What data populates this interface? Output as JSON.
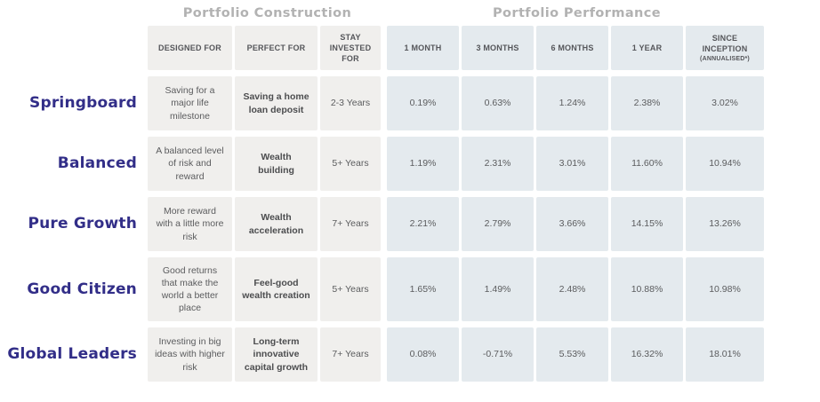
{
  "sections": {
    "construction_title": "Portfolio Construction",
    "performance_title": "Portfolio Performance"
  },
  "colors": {
    "row_label_text": "#322e88",
    "section_title_text": "#b2b2b2",
    "construction_cell_bg": "#f0efed",
    "performance_cell_bg": "#e4eaee",
    "cell_text": "#5b5c5e",
    "header_text": "#55565a"
  },
  "chart_data": {
    "type": "table",
    "title": "",
    "column_groups": [
      {
        "label": "Portfolio Construction",
        "columns": [
          "DESIGNED FOR",
          "PERFECT FOR",
          "STAY INVESTED FOR"
        ]
      },
      {
        "label": "Portfolio Performance",
        "columns": [
          "1 MONTH",
          "3 MONTHS",
          "6 MONTHS",
          "1 YEAR",
          "SINCE INCEPTION (ANNUALISED*)"
        ]
      }
    ],
    "columns": [
      {
        "label": "DESIGNED FOR"
      },
      {
        "label": "PERFECT FOR"
      },
      {
        "label": "STAY INVESTED FOR"
      },
      {
        "label": "1 MONTH"
      },
      {
        "label": "3 MONTHS"
      },
      {
        "label": "6 MONTHS"
      },
      {
        "label": "1 YEAR"
      },
      {
        "label": "SINCE INCEPTION",
        "sublabel": "(ANNUALISED*)"
      }
    ],
    "rows": [
      {
        "name": "Springboard",
        "designed_for": "Saving for a major life milestone",
        "perfect_for": "Saving a home loan deposit",
        "stay_invested_for": "2-3 Years",
        "m1": "0.19%",
        "m3": "0.63%",
        "m6": "1.24%",
        "y1": "2.38%",
        "inception": "3.02%"
      },
      {
        "name": "Balanced",
        "designed_for": "A balanced level of risk and reward",
        "perfect_for": "Wealth building",
        "stay_invested_for": "5+ Years",
        "m1": "1.19%",
        "m3": "2.31%",
        "m6": "3.01%",
        "y1": "11.60%",
        "inception": "10.94%"
      },
      {
        "name": "Pure Growth",
        "designed_for": "More reward with a little more risk",
        "perfect_for": "Wealth acceleration",
        "stay_invested_for": "7+ Years",
        "m1": "2.21%",
        "m3": "2.79%",
        "m6": "3.66%",
        "y1": "14.15%",
        "inception": "13.26%"
      },
      {
        "name": "Good Citizen",
        "designed_for": "Good returns that make the world a better place",
        "perfect_for": "Feel-good wealth creation",
        "stay_invested_for": "5+ Years",
        "m1": "1.65%",
        "m3": "1.49%",
        "m6": "2.48%",
        "y1": "10.88%",
        "inception": "10.98%"
      },
      {
        "name": "Global Leaders",
        "designed_for": "Investing in big ideas with higher risk",
        "perfect_for": "Long-term innovative capital growth",
        "stay_invested_for": "7+ Years",
        "m1": "0.08%",
        "m3": "-0.71%",
        "m6": "5.53%",
        "y1": "16.32%",
        "inception": "18.01%"
      }
    ]
  }
}
